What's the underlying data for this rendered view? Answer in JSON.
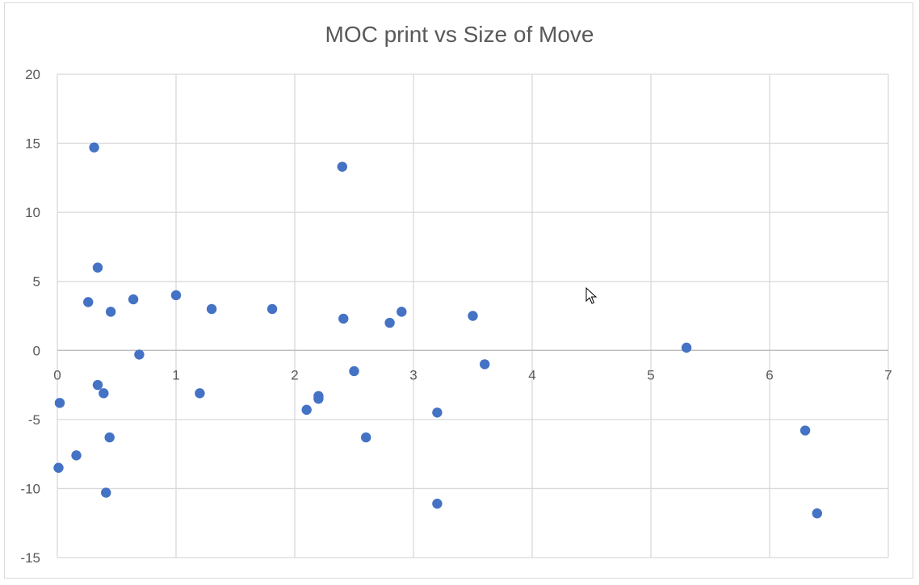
{
  "chart_data": {
    "type": "scatter",
    "title": "MOC print vs Size of Move",
    "xlabel": "",
    "ylabel": "",
    "xlim": [
      0,
      7
    ],
    "ylim": [
      -15,
      20
    ],
    "x_ticks": [
      0,
      1,
      2,
      3,
      4,
      5,
      6,
      7
    ],
    "y_ticks": [
      20,
      15,
      10,
      5,
      0,
      -5,
      -10,
      -15
    ],
    "x_tick_labels": [
      "0",
      "1",
      "2",
      "3",
      "4",
      "5",
      "6",
      "7"
    ],
    "y_tick_labels": [
      "20",
      "15",
      "10",
      "5",
      "0",
      "-5",
      "-10",
      "-15"
    ],
    "grid": true,
    "legend": "none",
    "colors": {
      "marker": "#4472c4",
      "grid": "#d9d9d9",
      "text": "#595959"
    },
    "points": [
      {
        "x": 0.31,
        "y": 14.7
      },
      {
        "x": 2.4,
        "y": 13.3
      },
      {
        "x": 0.34,
        "y": 6.0
      },
      {
        "x": 0.26,
        "y": 3.5
      },
      {
        "x": 0.64,
        "y": 3.7
      },
      {
        "x": 1.0,
        "y": 4.0
      },
      {
        "x": 0.45,
        "y": 2.8
      },
      {
        "x": 1.3,
        "y": 3.0
      },
      {
        "x": 1.81,
        "y": 3.0
      },
      {
        "x": 2.41,
        "y": 2.3
      },
      {
        "x": 2.8,
        "y": 2.0
      },
      {
        "x": 2.9,
        "y": 2.8
      },
      {
        "x": 3.5,
        "y": 2.5
      },
      {
        "x": 5.3,
        "y": 0.2
      },
      {
        "x": 0.69,
        "y": -0.3
      },
      {
        "x": 3.6,
        "y": -1.0
      },
      {
        "x": 2.5,
        "y": -1.5
      },
      {
        "x": 0.02,
        "y": -3.8
      },
      {
        "x": 0.34,
        "y": -2.5
      },
      {
        "x": 0.39,
        "y": -3.1
      },
      {
        "x": 1.2,
        "y": -3.1
      },
      {
        "x": 2.2,
        "y": -3.3
      },
      {
        "x": 2.2,
        "y": -3.5
      },
      {
        "x": 2.1,
        "y": -4.3
      },
      {
        "x": 3.2,
        "y": -4.5
      },
      {
        "x": 0.44,
        "y": -6.3
      },
      {
        "x": 2.6,
        "y": -6.3
      },
      {
        "x": 6.3,
        "y": -5.8
      },
      {
        "x": 0.16,
        "y": -7.6
      },
      {
        "x": 0.01,
        "y": -8.5
      },
      {
        "x": 0.41,
        "y": -10.3
      },
      {
        "x": 3.2,
        "y": -11.1
      },
      {
        "x": 6.4,
        "y": -11.8
      }
    ]
  },
  "cursor": {
    "icon": "mouse-pointer-icon"
  }
}
